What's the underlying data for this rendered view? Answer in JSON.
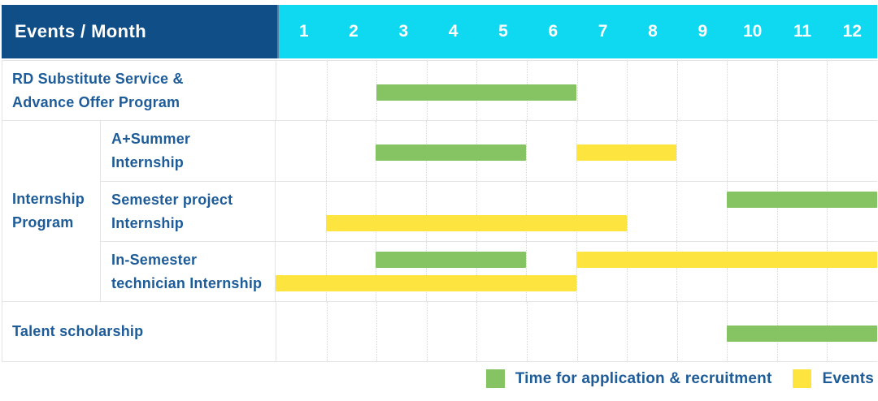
{
  "colors": {
    "header_bg": "#104E88",
    "months_bg": "#0FD8F1",
    "label_text": "#1E5C99",
    "application_bar": "#85C363",
    "events_bar": "#FEE43E",
    "grid_line": "#E4E4E4"
  },
  "chart_data": {
    "type": "table",
    "title": "Events / Month",
    "xlabel": "Month",
    "months": [
      "1",
      "2",
      "3",
      "4",
      "5",
      "6",
      "7",
      "8",
      "9",
      "10",
      "11",
      "12"
    ],
    "x_range": [
      1,
      12
    ],
    "grid": true,
    "legend_position": "bottom-right",
    "legend": [
      {
        "kind": "application",
        "label": "Time for application & recruitment",
        "color": "#85C363"
      },
      {
        "kind": "events",
        "label": "Events",
        "color": "#FEE43E"
      }
    ],
    "sections": [
      {
        "label": "RD Substitute Service &\nAdvance Offer Program",
        "rows": [
          {
            "event": "RD Substitute Service & Advance Offer Program",
            "bars": [
              {
                "kind": "application",
                "start_month": 3,
                "end_month": 6,
                "lane": "center"
              }
            ]
          }
        ]
      },
      {
        "label": "Internship\nProgram",
        "rows": [
          {
            "label": "A+Summer\nInternship",
            "event": "A+Summer Internship",
            "bars": [
              {
                "kind": "application",
                "start_month": 3,
                "end_month": 5,
                "lane": "center"
              },
              {
                "kind": "events",
                "start_month": 7,
                "end_month": 8,
                "lane": "center"
              }
            ]
          },
          {
            "label": "Semester project\nInternship",
            "event": "Semester project Internship",
            "bars": [
              {
                "kind": "application",
                "start_month": 10,
                "end_month": 12,
                "lane": "top"
              },
              {
                "kind": "events",
                "start_month": 2,
                "end_month": 7,
                "lane": "bottom"
              }
            ]
          },
          {
            "label": "In-Semester\ntechnician Internship",
            "event": "In-Semester technician Internship",
            "bars": [
              {
                "kind": "application",
                "start_month": 3,
                "end_month": 5,
                "lane": "top"
              },
              {
                "kind": "events",
                "start_month": 7,
                "end_month": 12,
                "lane": "top"
              },
              {
                "kind": "events",
                "start_month": 1,
                "end_month": 6,
                "lane": "bottom"
              }
            ]
          }
        ]
      },
      {
        "label": "Talent scholarship",
        "rows": [
          {
            "event": "Talent scholarship",
            "bars": [
              {
                "kind": "application",
                "start_month": 10,
                "end_month": 12,
                "lane": "center"
              }
            ]
          }
        ]
      }
    ]
  }
}
